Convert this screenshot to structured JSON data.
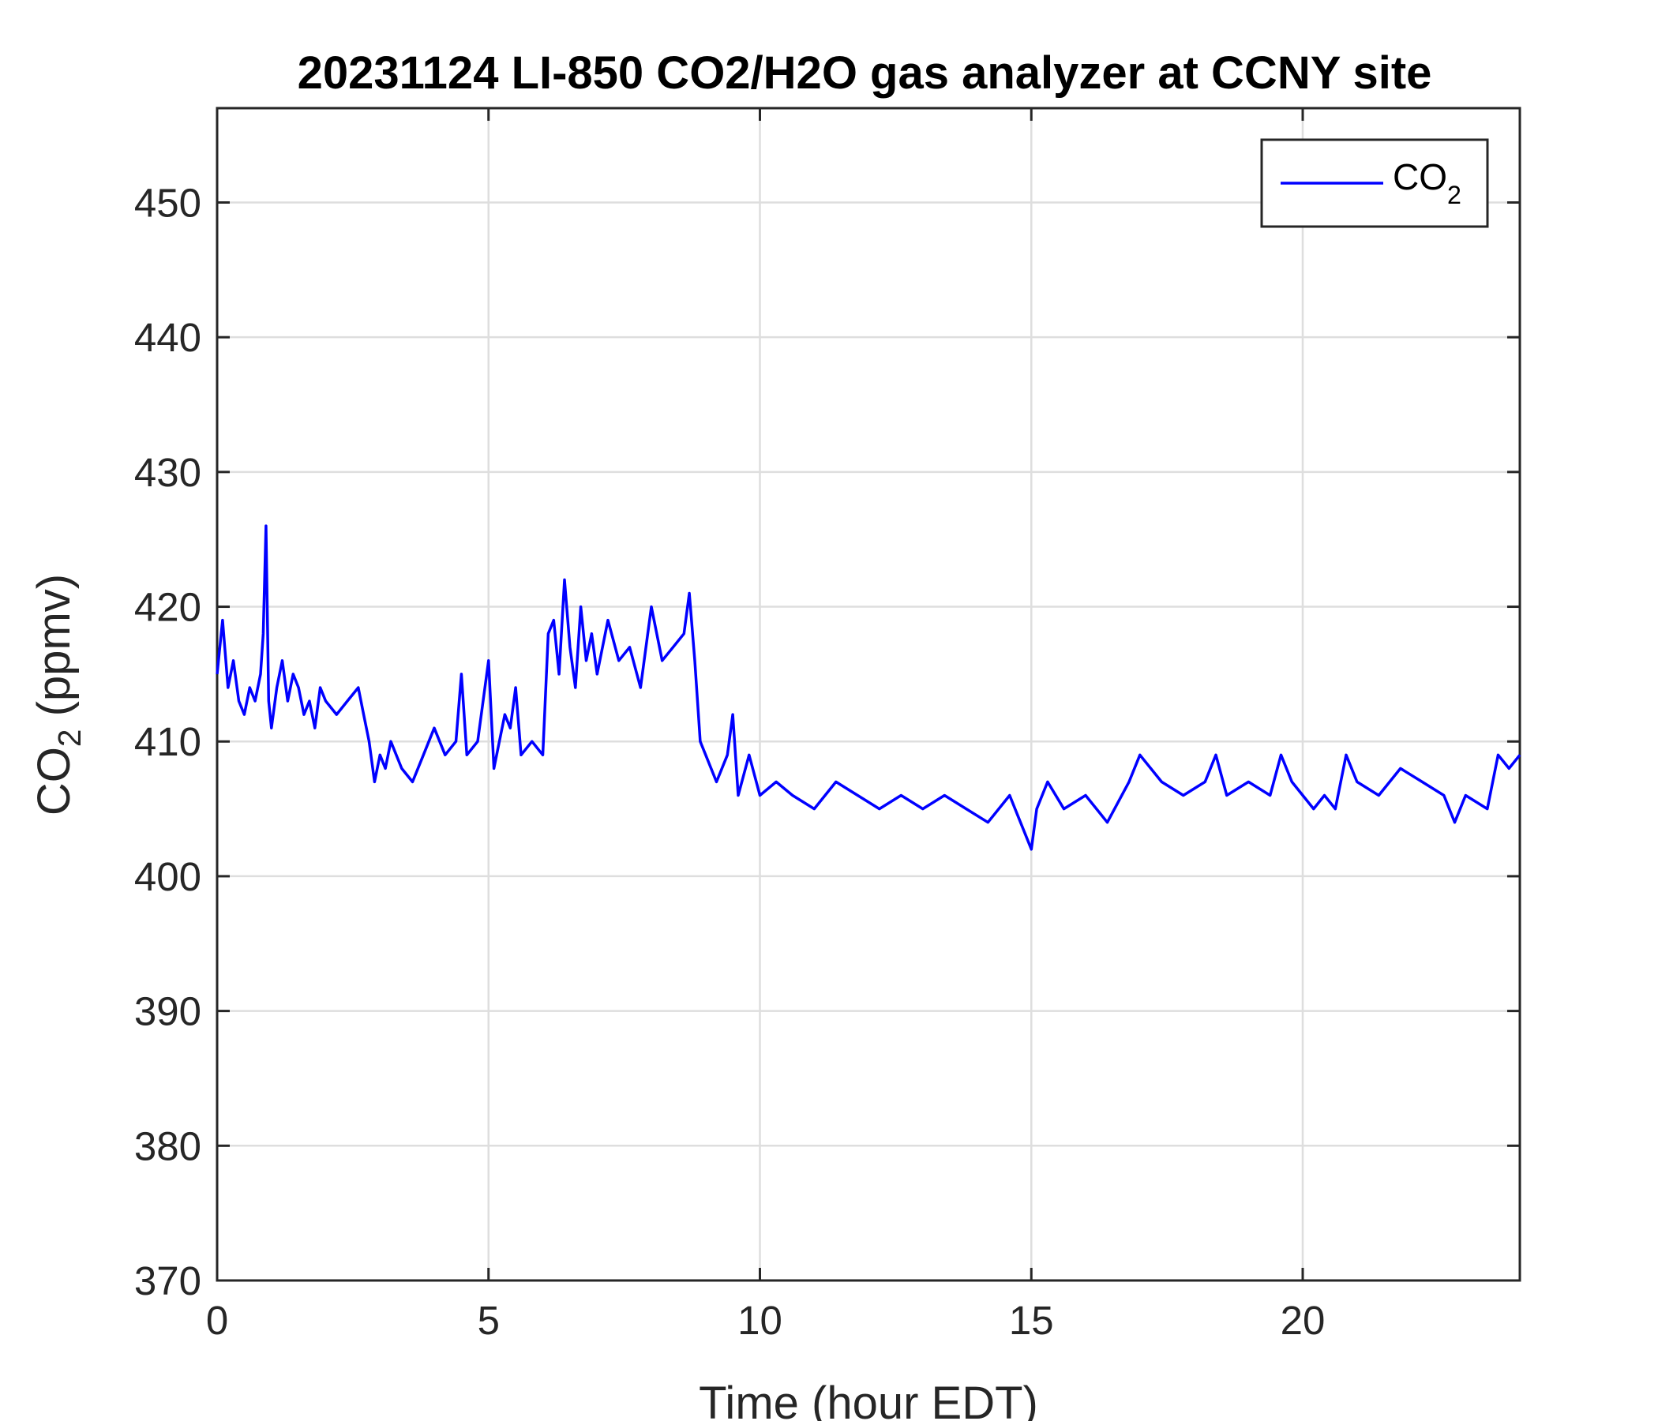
{
  "chart_data": {
    "type": "line",
    "title": "20231124 LI-850 CO2/H2O gas analyzer at CCNY site",
    "xlabel": {
      "main": "Time (hour EDT)"
    },
    "ylabel": {
      "pre": "CO",
      "sub": "2",
      "post": " (ppmv)"
    },
    "xlim": [
      0,
      24
    ],
    "ylim": [
      370,
      457
    ],
    "xticks": [
      0,
      5,
      10,
      15,
      20
    ],
    "yticks": [
      370,
      380,
      390,
      400,
      410,
      420,
      430,
      440,
      450
    ],
    "grid": true,
    "legend": {
      "position": "top-right",
      "entries": [
        {
          "pre": "CO",
          "sub": "2"
        }
      ]
    },
    "series": [
      {
        "name": "CO2",
        "color": "#0000ff",
        "x": [
          0,
          0.1,
          0.2,
          0.3,
          0.4,
          0.5,
          0.6,
          0.7,
          0.8,
          0.85,
          0.9,
          0.95,
          1.0,
          1.1,
          1.2,
          1.3,
          1.4,
          1.5,
          1.6,
          1.7,
          1.8,
          1.9,
          2.0,
          2.2,
          2.4,
          2.6,
          2.7,
          2.8,
          2.9,
          3.0,
          3.1,
          3.2,
          3.4,
          3.6,
          3.8,
          4.0,
          4.2,
          4.4,
          4.5,
          4.6,
          4.8,
          4.9,
          5.0,
          5.1,
          5.2,
          5.3,
          5.4,
          5.5,
          5.6,
          5.8,
          6.0,
          6.1,
          6.2,
          6.3,
          6.4,
          6.5,
          6.6,
          6.7,
          6.8,
          6.9,
          7.0,
          7.2,
          7.4,
          7.6,
          7.8,
          8.0,
          8.2,
          8.4,
          8.6,
          8.7,
          8.8,
          8.9,
          9.0,
          9.2,
          9.4,
          9.5,
          9.6,
          9.8,
          10.0,
          10.3,
          10.6,
          11.0,
          11.4,
          11.8,
          12.2,
          12.6,
          13.0,
          13.4,
          13.8,
          14.2,
          14.6,
          15.0,
          15.1,
          15.3,
          15.6,
          16.0,
          16.4,
          16.8,
          17.0,
          17.4,
          17.8,
          18.2,
          18.4,
          18.6,
          19.0,
          19.4,
          19.6,
          19.8,
          20.2,
          20.4,
          20.6,
          20.8,
          21.0,
          21.4,
          21.8,
          22.2,
          22.6,
          22.8,
          23.0,
          23.4,
          23.6,
          23.8,
          24.0
        ],
        "y": [
          415,
          419,
          414,
          416,
          413,
          412,
          414,
          413,
          415,
          418,
          426,
          413,
          411,
          414,
          416,
          413,
          415,
          414,
          412,
          413,
          411,
          414,
          413,
          412,
          413,
          414,
          412,
          410,
          407,
          409,
          408,
          410,
          408,
          407,
          409,
          411,
          409,
          410,
          415,
          409,
          410,
          413,
          416,
          408,
          410,
          412,
          411,
          414,
          409,
          410,
          409,
          418,
          419,
          415,
          422,
          417,
          414,
          420,
          416,
          418,
          415,
          419,
          416,
          417,
          414,
          420,
          416,
          417,
          418,
          421,
          416,
          410,
          409,
          407,
          409,
          412,
          406,
          409,
          406,
          407,
          406,
          405,
          407,
          406,
          405,
          406,
          405,
          406,
          405,
          404,
          406,
          402,
          405,
          407,
          405,
          406,
          404,
          407,
          409,
          407,
          406,
          407,
          409,
          406,
          407,
          406,
          409,
          407,
          405,
          406,
          405,
          409,
          407,
          406,
          408,
          407,
          406,
          404,
          406,
          405,
          409,
          408,
          409
        ]
      }
    ]
  }
}
